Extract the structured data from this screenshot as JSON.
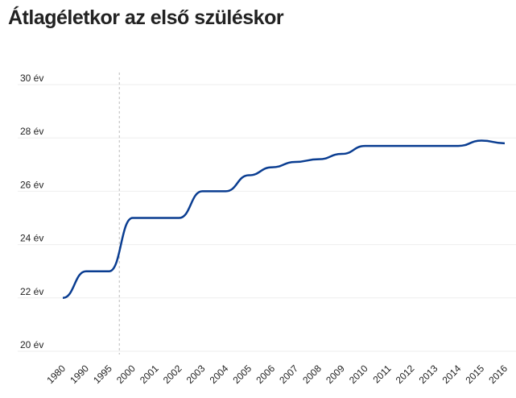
{
  "chart_data": {
    "type": "line",
    "title": "Átlagéletkor az első szüléskor",
    "categories": [
      "1980",
      "1990",
      "1995",
      "2000",
      "2001",
      "2002",
      "2003",
      "2004",
      "2005",
      "2006",
      "2007",
      "2008",
      "2009",
      "2010",
      "2011",
      "2012",
      "2013",
      "2014",
      "2015",
      "2016"
    ],
    "series": [
      {
        "color": "#0a3d91",
        "values": [
          22,
          23,
          23,
          25,
          25,
          25,
          26,
          26,
          26.6,
          26.9,
          27.1,
          27.2,
          27.4,
          27.7,
          27.7,
          27.7,
          27.7,
          27.7,
          27.9,
          27.8
        ]
      }
    ],
    "ylim": [
      20,
      30
    ],
    "yticks": [
      {
        "value": 20,
        "label": "20 év"
      },
      {
        "value": 22,
        "label": "22 év"
      },
      {
        "value": 24,
        "label": "24 év"
      },
      {
        "value": 26,
        "label": "26 év"
      },
      {
        "value": 28,
        "label": "28 év"
      },
      {
        "value": 30,
        "label": "30 év"
      }
    ],
    "grid": true
  }
}
